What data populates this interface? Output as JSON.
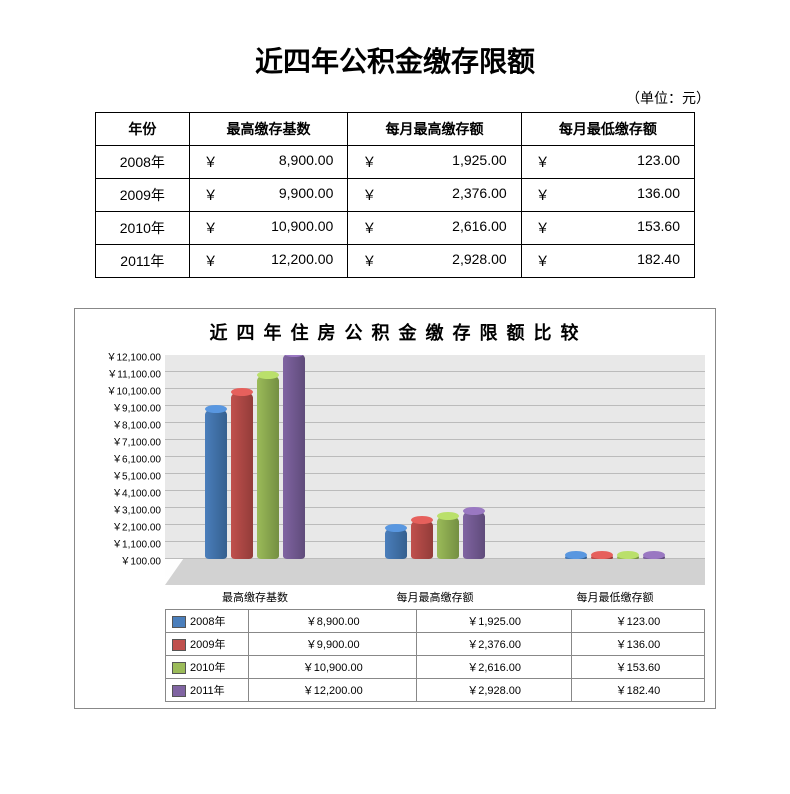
{
  "title": "近四年公积金缴存限额",
  "unit_label": "（单位：元）",
  "currency_symbol": "￥",
  "table": {
    "columns": [
      "年份",
      "最高缴存基数",
      "每月最高缴存额",
      "每月最低缴存额"
    ],
    "rows": [
      {
        "year": "2008年",
        "base": "8,900.00",
        "max": "1,925.00",
        "min": "123.00"
      },
      {
        "year": "2009年",
        "base": "9,900.00",
        "max": "2,376.00",
        "min": "136.00"
      },
      {
        "year": "2010年",
        "base": "10,900.00",
        "max": "2,616.00",
        "min": "153.60"
      },
      {
        "year": "2011年",
        "base": "12,200.00",
        "max": "2,928.00",
        "min": "182.40"
      }
    ]
  },
  "chart": {
    "title": "近 四 年 住 房 公 积 金 缴 存 限 额 比 较",
    "type": "bar-3d",
    "categories": [
      "最高缴存基数",
      "每月最高缴存额",
      "每月最低缴存额"
    ],
    "series": [
      {
        "name": "2008年",
        "color": "#4a7ebb",
        "dark": "#35608f",
        "values": [
          8900,
          1925,
          123
        ]
      },
      {
        "name": "2009年",
        "color": "#c0504d",
        "dark": "#933c39",
        "values": [
          9900,
          2376,
          136
        ]
      },
      {
        "name": "2010年",
        "color": "#9bbb59",
        "dark": "#748f42",
        "values": [
          10900,
          2616,
          153.6
        ]
      },
      {
        "name": "2011年",
        "color": "#8064a2",
        "dark": "#5f4b7a",
        "values": [
          12200,
          2928,
          182.4
        ]
      }
    ],
    "y_min": 100,
    "y_max": 12100,
    "y_step": 1000,
    "y_tick_labels": [
      "￥100.00",
      "￥1,100.00",
      "￥2,100.00",
      "￥3,100.00",
      "￥4,100.00",
      "￥5,100.00",
      "￥6,100.00",
      "￥7,100.00",
      "￥8,100.00",
      "￥9,100.00",
      "￥10,100.00",
      "￥11,100.00",
      "￥12,100.00"
    ],
    "legend_rows": [
      {
        "name": "2008年",
        "cells": [
          "￥8,900.00",
          "￥1,925.00",
          "￥123.00"
        ]
      },
      {
        "name": "2009年",
        "cells": [
          "￥9,900.00",
          "￥2,376.00",
          "￥136.00"
        ]
      },
      {
        "name": "2010年",
        "cells": [
          "￥10,900.00",
          "￥2,616.00",
          "￥153.60"
        ]
      },
      {
        "name": "2011年",
        "cells": [
          "￥12,200.00",
          "￥2,928.00",
          "￥182.40"
        ]
      }
    ],
    "background_color": "#ffffff",
    "wall_color": "#e8e8e8",
    "floor_color": "#bfbfbf",
    "grid_color": "#bbbbbb",
    "title_fontsize": 18,
    "tick_fontsize": 10
  }
}
